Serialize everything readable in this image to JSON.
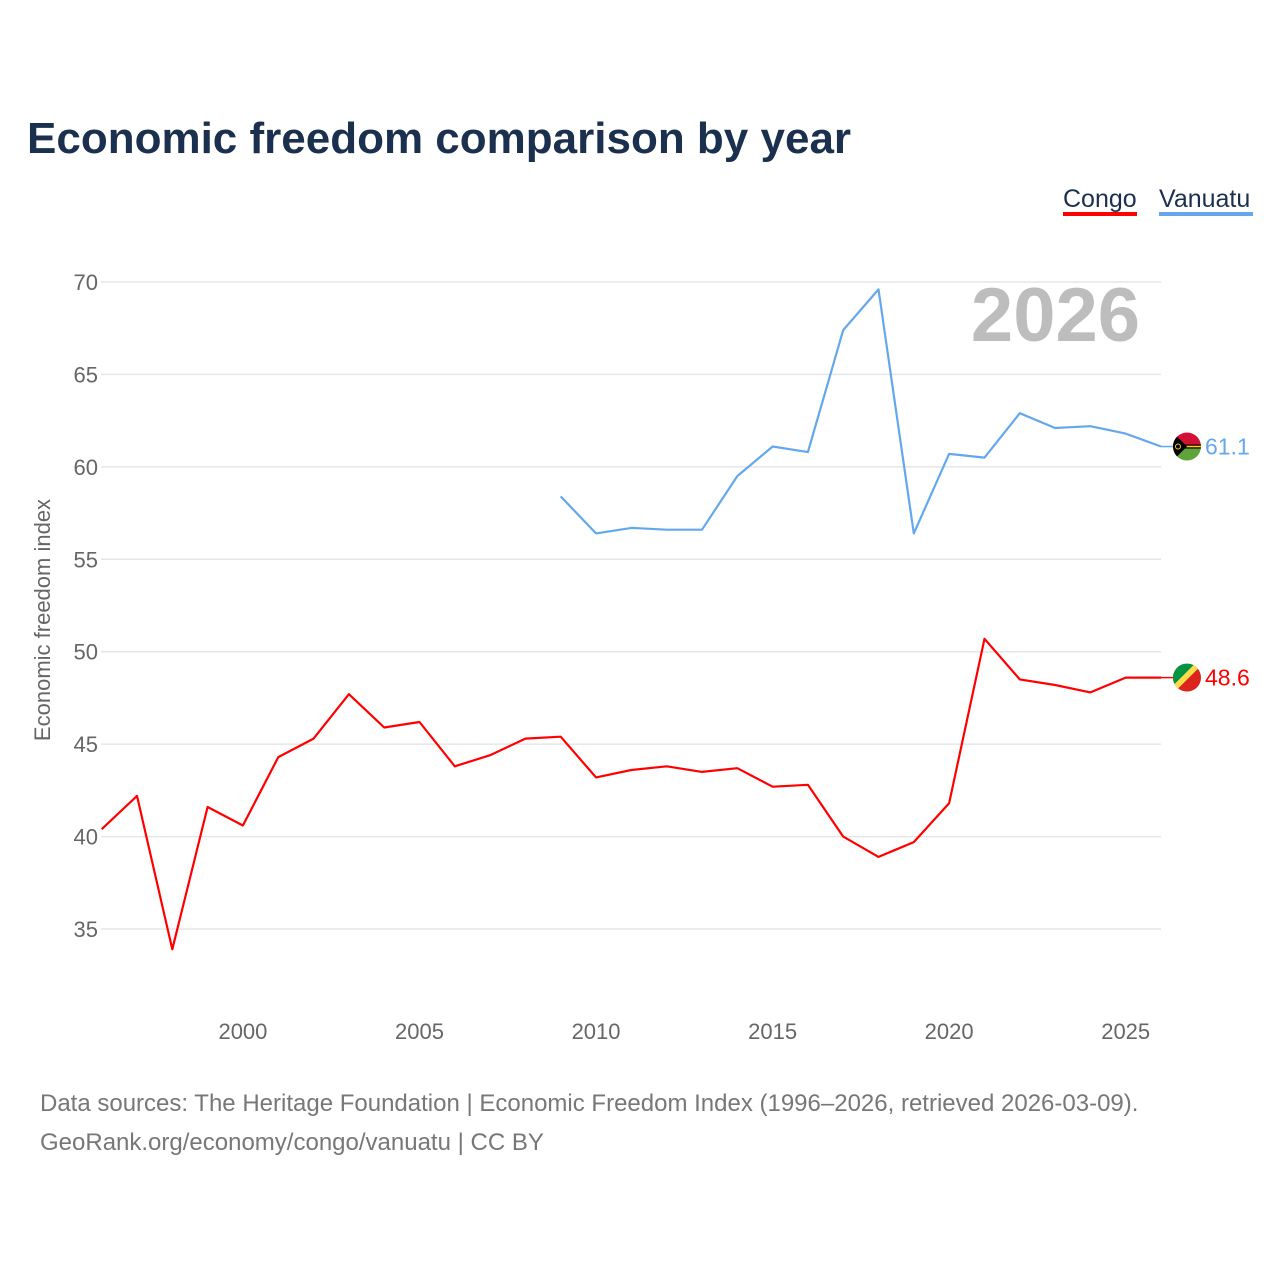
{
  "chart_data": {
    "type": "line",
    "title": "Economic freedom comparison by year",
    "ylabel": "Economic freedom index",
    "xlabel": "",
    "xlim": [
      1996,
      2026
    ],
    "ylim": [
      31,
      72
    ],
    "yticks": [
      35,
      40,
      45,
      50,
      55,
      60,
      65,
      70
    ],
    "xticks": [
      2000,
      2005,
      2010,
      2015,
      2020,
      2025
    ],
    "grid": true,
    "legend_position": "top-right",
    "current_year_label": "2026",
    "series": [
      {
        "name": "Congo",
        "color": "#ff0000",
        "end_label": "48.6",
        "x": [
          1996,
          1997,
          1998,
          1999,
          2000,
          2001,
          2002,
          2003,
          2004,
          2005,
          2006,
          2007,
          2008,
          2009,
          2010,
          2011,
          2012,
          2013,
          2014,
          2015,
          2016,
          2017,
          2018,
          2019,
          2020,
          2021,
          2022,
          2023,
          2024,
          2025,
          2026
        ],
        "values": [
          40.4,
          42.2,
          33.9,
          41.6,
          40.6,
          44.3,
          45.3,
          47.7,
          45.9,
          46.2,
          43.8,
          44.4,
          45.3,
          45.4,
          43.2,
          43.6,
          43.8,
          43.5,
          43.7,
          42.7,
          42.8,
          40.0,
          38.9,
          39.7,
          41.8,
          50.7,
          48.5,
          48.2,
          47.8,
          48.6,
          48.6
        ]
      },
      {
        "name": "Vanuatu",
        "color": "#64a8ec",
        "end_label": "61.1",
        "x": [
          2009,
          2010,
          2011,
          2012,
          2013,
          2014,
          2015,
          2016,
          2017,
          2018,
          2019,
          2020,
          2021,
          2022,
          2023,
          2024,
          2025,
          2026
        ],
        "values": [
          58.4,
          56.4,
          56.7,
          56.6,
          56.6,
          59.5,
          61.1,
          60.8,
          67.4,
          69.6,
          56.4,
          60.7,
          60.5,
          62.9,
          62.1,
          62.2,
          61.8,
          61.1
        ]
      }
    ]
  },
  "footer": {
    "line1": "Data sources: The Heritage Foundation | Economic Freedom Index (1996–2026, retrieved 2026-03-09).",
    "line2": "GeoRank.org/economy/congo/vanuatu | CC BY"
  }
}
